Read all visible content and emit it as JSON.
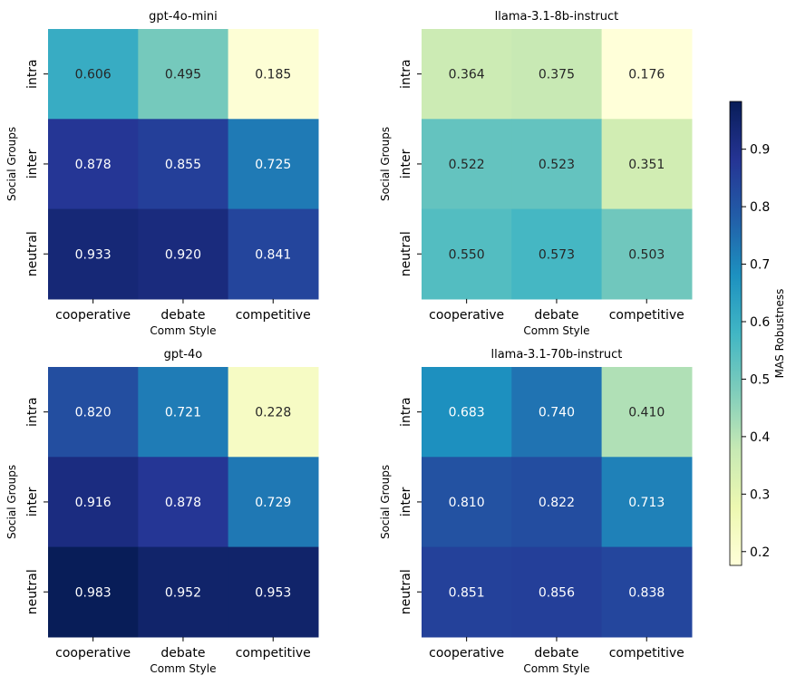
{
  "chart_data": [
    {
      "type": "heatmap",
      "title": "gpt-4o-mini",
      "xlabel": "Comm Style",
      "ylabel": "Social Groups",
      "x_categories": [
        "cooperative",
        "debate",
        "competitive"
      ],
      "y_categories": [
        "intra",
        "inter",
        "neutral"
      ],
      "values": [
        [
          0.606,
          0.495,
          0.185
        ],
        [
          0.878,
          0.855,
          0.725
        ],
        [
          0.933,
          0.92,
          0.841
        ]
      ],
      "value_labels": [
        [
          "0.606",
          "0.495",
          "0.185"
        ],
        [
          "0.878",
          "0.855",
          "0.725"
        ],
        [
          "0.933",
          "0.920",
          "0.841"
        ]
      ]
    },
    {
      "type": "heatmap",
      "title": "llama-3.1-8b-instruct",
      "xlabel": "Comm Style",
      "ylabel": "Social Groups",
      "x_categories": [
        "cooperative",
        "debate",
        "competitive"
      ],
      "y_categories": [
        "intra",
        "inter",
        "neutral"
      ],
      "values": [
        [
          0.364,
          0.375,
          0.176
        ],
        [
          0.522,
          0.523,
          0.351
        ],
        [
          0.55,
          0.573,
          0.503
        ]
      ],
      "value_labels": [
        [
          "0.364",
          "0.375",
          "0.176"
        ],
        [
          "0.522",
          "0.523",
          "0.351"
        ],
        [
          "0.550",
          "0.573",
          "0.503"
        ]
      ]
    },
    {
      "type": "heatmap",
      "title": "gpt-4o",
      "xlabel": "Comm Style",
      "ylabel": "Social Groups",
      "x_categories": [
        "cooperative",
        "debate",
        "competitive"
      ],
      "y_categories": [
        "intra",
        "inter",
        "neutral"
      ],
      "values": [
        [
          0.82,
          0.721,
          0.228
        ],
        [
          0.916,
          0.878,
          0.729
        ],
        [
          0.983,
          0.952,
          0.953
        ]
      ],
      "value_labels": [
        [
          "0.820",
          "0.721",
          "0.228"
        ],
        [
          "0.916",
          "0.878",
          "0.729"
        ],
        [
          "0.983",
          "0.952",
          "0.953"
        ]
      ]
    },
    {
      "type": "heatmap",
      "title": "llama-3.1-70b-instruct",
      "xlabel": "Comm Style",
      "ylabel": "Social Groups",
      "x_categories": [
        "cooperative",
        "debate",
        "competitive"
      ],
      "y_categories": [
        "intra",
        "inter",
        "neutral"
      ],
      "values": [
        [
          0.683,
          0.74,
          0.41
        ],
        [
          0.81,
          0.822,
          0.713
        ],
        [
          0.851,
          0.856,
          0.838
        ]
      ],
      "value_labels": [
        [
          "0.683",
          "0.740",
          "0.410"
        ],
        [
          "0.810",
          "0.822",
          "0.713"
        ],
        [
          "0.851",
          "0.856",
          "0.838"
        ]
      ]
    }
  ],
  "colorbar": {
    "label": "MAS Robustness",
    "colormap": "YlGnBu",
    "range": [
      0.176,
      0.983
    ],
    "ticks": [
      0.2,
      0.3,
      0.4,
      0.5,
      0.6,
      0.7,
      0.8,
      0.9
    ],
    "tick_labels": [
      "0.2",
      "0.3",
      "0.4",
      "0.5",
      "0.6",
      "0.7",
      "0.8",
      "0.9"
    ]
  },
  "colors": {
    "text_dark": "#262626",
    "text_light": "#ffffff"
  }
}
